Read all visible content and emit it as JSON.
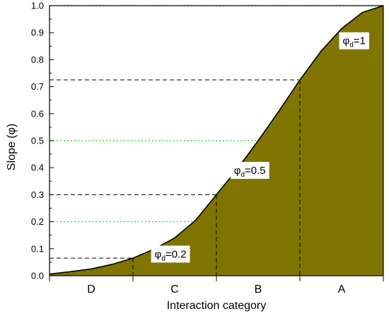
{
  "chart_data": {
    "type": "area",
    "title": "",
    "xlabel": "Interaction category",
    "ylabel": "Slope (φ)",
    "ylim": [
      0.0,
      1.0
    ],
    "yticks": [
      "0.0",
      "0.1",
      "0.2",
      "0.3",
      "0.4",
      "0.5",
      "0.6",
      "0.7",
      "0.8",
      "0.9",
      "1.0"
    ],
    "categories": [
      "D",
      "C",
      "B",
      "A"
    ],
    "curve": {
      "x": [
        0.0,
        0.25,
        0.5,
        0.75,
        1.0,
        1.25,
        1.5,
        1.75,
        2.0,
        2.25,
        2.5,
        2.75,
        3.0,
        3.25,
        3.5,
        3.75,
        4.0
      ],
      "y": [
        0.006,
        0.015,
        0.025,
        0.042,
        0.065,
        0.098,
        0.14,
        0.205,
        0.3,
        0.395,
        0.5,
        0.61,
        0.725,
        0.83,
        0.915,
        0.975,
        1.0
      ]
    },
    "fill_color": "#7f7500",
    "curve_color": "#000000",
    "reference_lines": {
      "color": "#33dd33",
      "y": [
        0.2,
        0.5,
        1.0
      ]
    },
    "thresholds": [
      {
        "x": 1.0,
        "y": 0.065
      },
      {
        "x": 2.0,
        "y": 0.3
      },
      {
        "x": 3.0,
        "y": 0.725
      }
    ],
    "annotations": [
      {
        "symbol": "φ",
        "sub": "d",
        "text": "=0.2",
        "x": 1.45,
        "y": 0.08
      },
      {
        "symbol": "φ",
        "sub": "d",
        "text": "=0.5",
        "x": 2.4,
        "y": 0.39
      },
      {
        "symbol": "φ",
        "sub": "d",
        "text": "=1",
        "x": 3.65,
        "y": 0.87
      }
    ]
  }
}
